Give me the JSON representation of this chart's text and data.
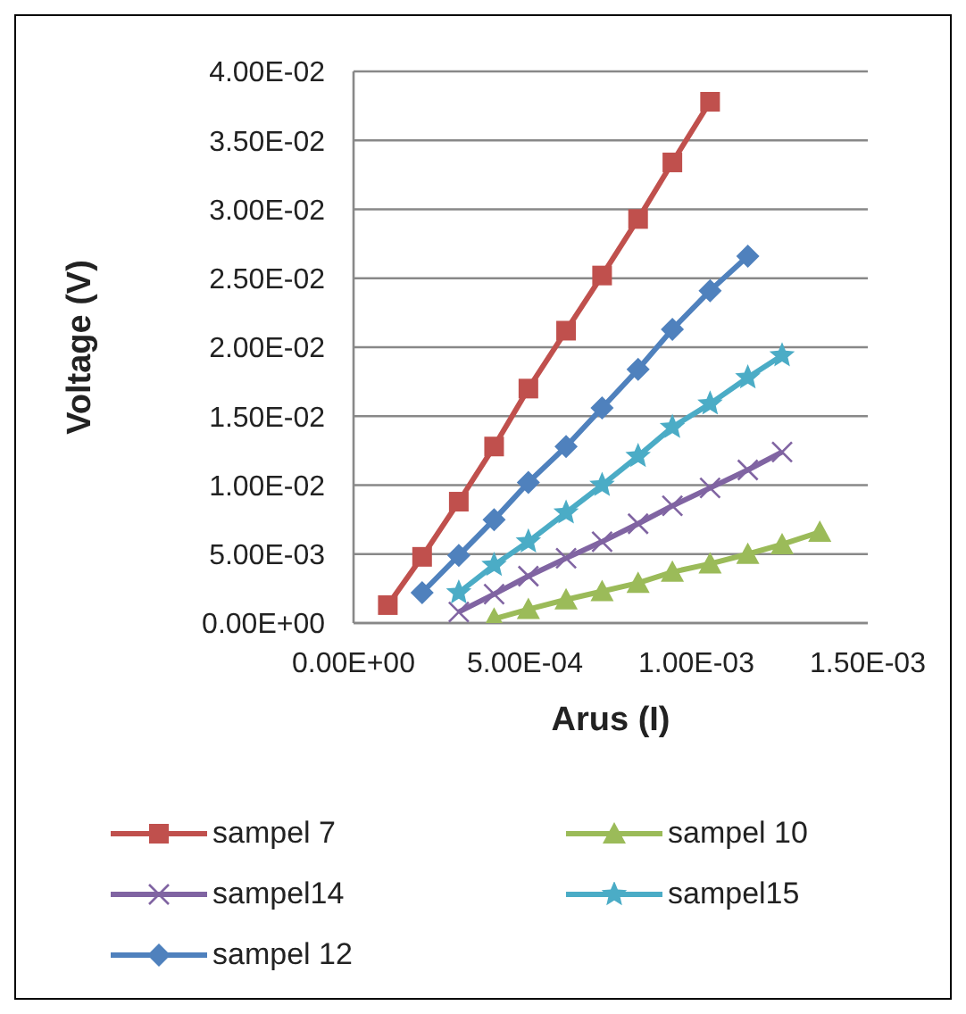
{
  "chart_data": {
    "type": "line",
    "xlabel": "Arus (I)",
    "ylabel": "Voltage (V)",
    "xlim": [
      0,
      0.0015
    ],
    "xticks": [
      {
        "value": 0,
        "label": "0.00E+00"
      },
      {
        "value": 0.0005,
        "label": "5.00E-04"
      },
      {
        "value": 0.001,
        "label": "1.00E-03"
      },
      {
        "value": 0.0015,
        "label": "1.50E-03"
      }
    ],
    "ylim": [
      0,
      0.04
    ],
    "yticks": [
      {
        "value": 0,
        "label": "0.00E+00"
      },
      {
        "value": 0.005,
        "label": "5.00E-03"
      },
      {
        "value": 0.01,
        "label": "1.00E-02"
      },
      {
        "value": 0.015,
        "label": "1.50E-02"
      },
      {
        "value": 0.02,
        "label": "2.00E-02"
      },
      {
        "value": 0.025,
        "label": "2.50E-02"
      },
      {
        "value": 0.03,
        "label": "3.00E-02"
      },
      {
        "value": 0.035,
        "label": "3.50E-02"
      },
      {
        "value": 0.04,
        "label": "4.00E-02"
      }
    ],
    "grid": "y",
    "legend": "bottom",
    "line_style": "solid",
    "series": [
      {
        "name": "sampel 7",
        "color": "#c0504d",
        "marker": "square",
        "x": [
          0.0001,
          0.0002,
          0.000307,
          0.00041,
          0.00051,
          0.00062,
          0.000725,
          0.00083,
          0.00093,
          0.00104
        ],
        "values": [
          0.0013,
          0.0048,
          0.0088,
          0.0128,
          0.017,
          0.0212,
          0.0252,
          0.0293,
          0.0334,
          0.0378
        ]
      },
      {
        "name": "sampel 10",
        "color": "#9bbb59",
        "marker": "triangle",
        "x": [
          0.00041,
          0.00051,
          0.00062,
          0.000725,
          0.00083,
          0.00093,
          0.00104,
          0.00115,
          0.00125,
          0.00136
        ],
        "values": [
          0.0003,
          0.001,
          0.0017,
          0.0023,
          0.0029,
          0.0037,
          0.0043,
          0.005,
          0.0057,
          0.0066
        ]
      },
      {
        "name": "sampel14",
        "color": "#8064a2",
        "marker": "cross",
        "x": [
          0.000307,
          0.00041,
          0.00051,
          0.00062,
          0.000725,
          0.00083,
          0.00093,
          0.00104,
          0.00115,
          0.00125
        ],
        "values": [
          0.0008,
          0.0021,
          0.0034,
          0.0047,
          0.0059,
          0.0072,
          0.0085,
          0.0098,
          0.0111,
          0.0124
        ]
      },
      {
        "name": "sampel15",
        "color": "#4bacc6",
        "marker": "star",
        "x": [
          0.000307,
          0.00041,
          0.00051,
          0.00062,
          0.000725,
          0.00083,
          0.00093,
          0.00104,
          0.00115,
          0.00125
        ],
        "values": [
          0.0022,
          0.0042,
          0.0059,
          0.008,
          0.01,
          0.0121,
          0.0142,
          0.0159,
          0.0178,
          0.0194
        ]
      },
      {
        "name": "sampel 12",
        "color": "#4f81bd",
        "marker": "diamond",
        "x": [
          0.0002,
          0.000307,
          0.00041,
          0.00051,
          0.00062,
          0.000725,
          0.00083,
          0.00093,
          0.00104,
          0.00115
        ],
        "values": [
          0.0022,
          0.0049,
          0.0075,
          0.0102,
          0.0128,
          0.0156,
          0.0184,
          0.0213,
          0.0241,
          0.0266
        ]
      }
    ]
  }
}
